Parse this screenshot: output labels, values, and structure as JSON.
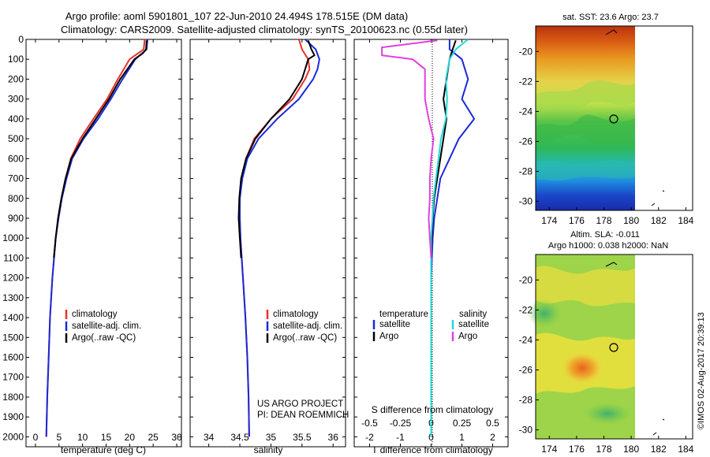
{
  "title_line1": "Argo profile: aoml 5901801_107 22-Jun-2010 24.494S 178.515E (DM data)",
  "title_line2": "Climatology: CARS2009. Satellite-adjusted climatology: synTS_20100623.nc (0.55d later)",
  "credit": "©IMOS 02-Aug-2017 20:39:13",
  "project_line1": "US ARGO PROJECT",
  "project_line2": "PI: DEAN ROEMMICH",
  "colors": {
    "climatology": "#e8312a",
    "satellite": "#1a2ad8",
    "argo": "#000000",
    "argo_salinity": "#e040e0",
    "satellite_salinity": "#25d8d8"
  },
  "chart_data": [
    {
      "type": "line",
      "name": "temperature-profile",
      "xlabel": "temperature (deg C)",
      "xlim": [
        -2,
        31
      ],
      "xticks": [
        0,
        5,
        10,
        15,
        20,
        25,
        30
      ],
      "ylim": [
        0,
        2050
      ],
      "yticks": [
        0,
        100,
        200,
        300,
        400,
        500,
        600,
        700,
        800,
        900,
        1000,
        1100,
        1200,
        1300,
        1400,
        1500,
        1600,
        1700,
        1800,
        1900,
        2000
      ],
      "legend": [
        "climatology",
        "satellite-adj. clim.",
        "Argo(..raw -QC)"
      ],
      "series": [
        {
          "name": "climatology",
          "depth": [
            0,
            50,
            100,
            200,
            300,
            400,
            500,
            600,
            700,
            800,
            900,
            1000,
            1200,
            1400,
            1600,
            1800,
            2000
          ],
          "values": [
            23.2,
            23.0,
            20.0,
            17.5,
            15.2,
            12.3,
            9.5,
            7.5,
            6.4,
            5.5,
            4.8,
            4.3,
            3.6,
            3.1,
            2.8,
            2.5,
            2.3
          ]
        },
        {
          "name": "satellite-adj. clim.",
          "depth": [
            0,
            50,
            100,
            200,
            300,
            400,
            500,
            600,
            700,
            800,
            900,
            1000,
            1200,
            1400,
            1600,
            1800,
            2000
          ],
          "values": [
            23.8,
            23.6,
            21.2,
            18.5,
            16.0,
            13.3,
            10.2,
            7.8,
            6.6,
            5.6,
            4.9,
            4.3,
            3.6,
            3.1,
            2.8,
            2.5,
            2.3
          ]
        },
        {
          "name": "Argo(..raw -QC)",
          "depth": [
            5,
            50,
            70,
            100,
            200,
            300,
            400,
            500,
            600,
            700,
            800,
            900,
            1000,
            1100
          ],
          "values": [
            23.6,
            23.5,
            22.8,
            21.0,
            18.0,
            15.6,
            12.8,
            10.0,
            7.6,
            6.4,
            5.5,
            4.8,
            4.3,
            3.9
          ]
        }
      ]
    },
    {
      "type": "line",
      "name": "salinity-profile",
      "xlabel": "salinity",
      "xlim": [
        33.7,
        36.2
      ],
      "xticks": [
        34,
        34.5,
        35,
        35.5,
        36
      ],
      "ylim": [
        0,
        2050
      ],
      "legend": [
        "climatology",
        "satellite-adj. clim.",
        "Argo(..raw -QC)"
      ],
      "series": [
        {
          "name": "climatology",
          "depth": [
            0,
            50,
            100,
            150,
            200,
            300,
            400,
            500,
            600,
            700,
            800,
            900,
            1000,
            1200,
            1400,
            1600,
            1800,
            2000
          ],
          "values": [
            35.45,
            35.5,
            35.6,
            35.62,
            35.55,
            35.35,
            35.0,
            34.73,
            34.6,
            34.53,
            34.5,
            34.5,
            34.51,
            34.55,
            34.59,
            34.62,
            34.64,
            34.65
          ]
        },
        {
          "name": "satellite-adj. clim.",
          "depth": [
            0,
            50,
            100,
            150,
            200,
            300,
            400,
            500,
            600,
            700,
            800,
            900,
            1000,
            1200,
            1400,
            1600,
            1800,
            2000
          ],
          "values": [
            35.55,
            35.72,
            35.78,
            35.75,
            35.68,
            35.45,
            35.1,
            34.8,
            34.62,
            34.54,
            34.5,
            34.5,
            34.51,
            34.55,
            34.59,
            34.62,
            34.64,
            34.65
          ]
        },
        {
          "name": "Argo(..raw -QC)",
          "depth": [
            5,
            50,
            80,
            100,
            150,
            200,
            300,
            400,
            500,
            600,
            700,
            800,
            900,
            1000,
            1100
          ],
          "values": [
            35.6,
            35.65,
            35.7,
            35.6,
            35.55,
            35.5,
            35.3,
            35.0,
            34.75,
            34.6,
            34.52,
            34.49,
            34.48,
            34.5,
            34.52
          ]
        }
      ]
    },
    {
      "type": "line",
      "name": "difference-profile",
      "xlabel": "T difference from climatology",
      "xlabel2": "S difference from climatology",
      "xlim": [
        -2.5,
        2.5
      ],
      "xticks": [
        -2,
        -1,
        0,
        1,
        2
      ],
      "xticks2_labels": [
        "-0.5",
        "-0.25",
        "0",
        "0.25",
        "0.5"
      ],
      "xticks2_values": [
        -0.5,
        -0.25,
        0,
        0.25,
        0.5
      ],
      "ylim": [
        0,
        2050
      ],
      "legend_titles": [
        "temperature",
        "salinity"
      ],
      "legend": [
        "satellite",
        "Argo",
        "satellite",
        "Argo"
      ],
      "series": [
        {
          "name": "temperature satellite",
          "depth": [
            0,
            50,
            100,
            200,
            300,
            400,
            500,
            600,
            700,
            800,
            900,
            1000,
            1200,
            1400,
            1600,
            2000
          ],
          "values": [
            0.6,
            0.6,
            1.0,
            1.2,
            1.0,
            1.4,
            0.9,
            0.6,
            0.3,
            0.2,
            0.1,
            0.05,
            0,
            0,
            0,
            0
          ]
        },
        {
          "name": "temperature Argo",
          "depth": [
            5,
            50,
            100,
            200,
            300,
            400,
            500,
            600,
            700,
            800,
            900,
            1000,
            1100
          ],
          "values": [
            0.8,
            0.7,
            0.6,
            0.5,
            0.4,
            0.5,
            0.4,
            0.3,
            0.2,
            0.1,
            0.05,
            0.02,
            0
          ]
        },
        {
          "name": "salinity satellite",
          "depth": [
            0,
            50,
            100,
            200,
            300,
            400,
            500,
            600,
            700,
            800,
            900,
            1000,
            1200,
            1600,
            2000
          ],
          "values": [
            0.3,
            0.2,
            0.15,
            0.12,
            0.13,
            0.12,
            0.08,
            0.06,
            0.04,
            0.02,
            0.01,
            0,
            0,
            0,
            0
          ]
        },
        {
          "name": "salinity Argo",
          "depth": [
            5,
            40,
            80,
            100,
            150,
            200,
            300,
            400,
            500,
            600,
            700,
            800,
            900,
            1000,
            1100
          ],
          "values": [
            0.05,
            -0.4,
            -0.4,
            -0.15,
            -0.05,
            -0.05,
            -0.05,
            -0.02,
            0.02,
            0.0,
            -0.01,
            -0.01,
            -0.02,
            -0.01,
            0
          ]
        }
      ]
    },
    {
      "type": "heatmap",
      "name": "sst-map",
      "title": "sat. SST: 23.6  Argo: 23.7",
      "xticks": [
        174,
        176,
        178,
        180,
        182,
        184
      ],
      "yticks": [
        -20,
        -22,
        -24,
        -26,
        -28,
        -30
      ],
      "xlim": [
        173,
        184.5
      ],
      "ylim": [
        -30.6,
        -18.3
      ],
      "profile_location": {
        "lon": 178.515,
        "lat": -24.494
      }
    },
    {
      "type": "heatmap",
      "name": "sla-map",
      "title_line1": "Altim. SLA: -0.011",
      "title_line2": "Argo h1000: 0.038 h2000: NaN",
      "xticks": [
        174,
        176,
        178,
        180,
        182,
        184
      ],
      "yticks": [
        -20,
        -22,
        -24,
        -26,
        -28,
        -30
      ],
      "xlim": [
        173,
        184.5
      ],
      "ylim": [
        -30.6,
        -18.3
      ],
      "profile_location": {
        "lon": 178.515,
        "lat": -24.494
      }
    }
  ]
}
